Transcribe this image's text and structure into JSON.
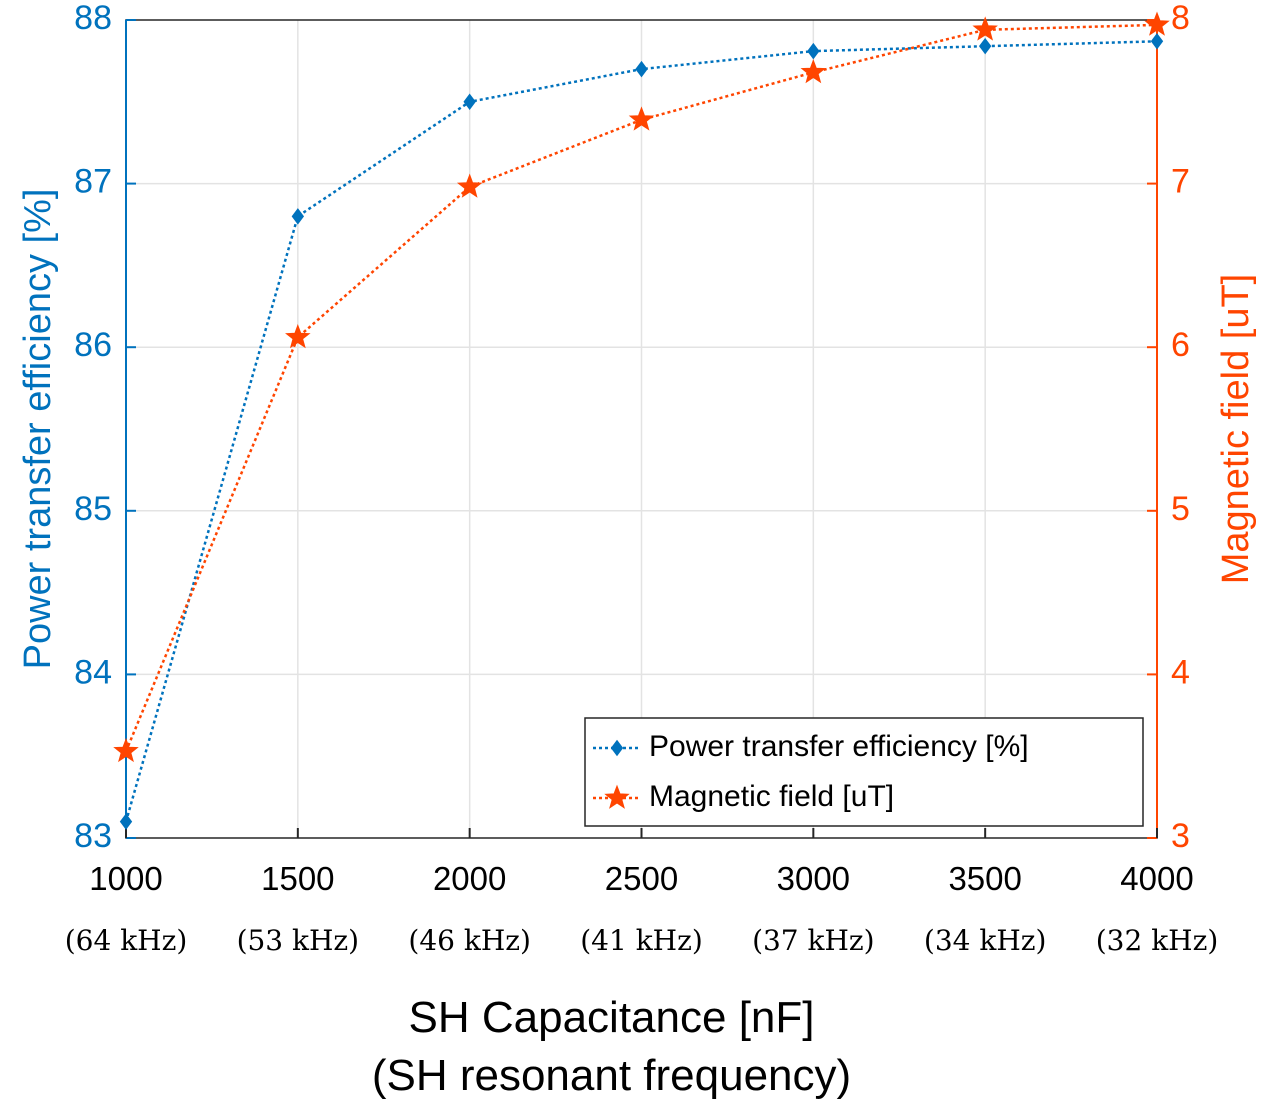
{
  "chart_data": {
    "type": "line",
    "x": [
      1000,
      1500,
      2000,
      2500,
      3000,
      3500,
      4000
    ],
    "x_tick_labels": [
      "1000",
      "1500",
      "2000",
      "2500",
      "3000",
      "3500",
      "4000"
    ],
    "x_tick_sublabels": [
      "(64 kHz)",
      "(53 kHz)",
      "(46 kHz)",
      "(41 kHz)",
      "(37 kHz)",
      "(34 kHz)",
      "(32 kHz)"
    ],
    "xlabel": "SH Capacitance [nF]",
    "xlabel_line2": "(SH resonant frequency)",
    "xlim": [
      1000,
      4000
    ],
    "ylabel_left": "Power transfer efficiency [%]",
    "ylim_left": [
      83,
      88
    ],
    "yticks_left": [
      83,
      84,
      85,
      86,
      87,
      88
    ],
    "ylabel_right": "Magnetic field [uT]",
    "ylim_right": [
      3,
      8
    ],
    "yticks_right": [
      3,
      4,
      5,
      6,
      7,
      8
    ],
    "grid": true,
    "legend_position": "bottom-right",
    "series": [
      {
        "name": "Power transfer efficiency [%]",
        "axis": "left",
        "marker": "diamond",
        "color": "#0072BD",
        "values": [
          83.1,
          86.8,
          87.5,
          87.7,
          87.81,
          87.84,
          87.87
        ]
      },
      {
        "name": "Magnetic field [uT]",
        "axis": "right",
        "marker": "star",
        "color": "#FF4500",
        "values": [
          3.53,
          6.06,
          6.98,
          7.39,
          7.68,
          7.94,
          7.97
        ]
      }
    ],
    "colors": {
      "left_axis": "#0072BD",
      "right_axis": "#FF4500",
      "grid": "#e3e3e3"
    }
  }
}
